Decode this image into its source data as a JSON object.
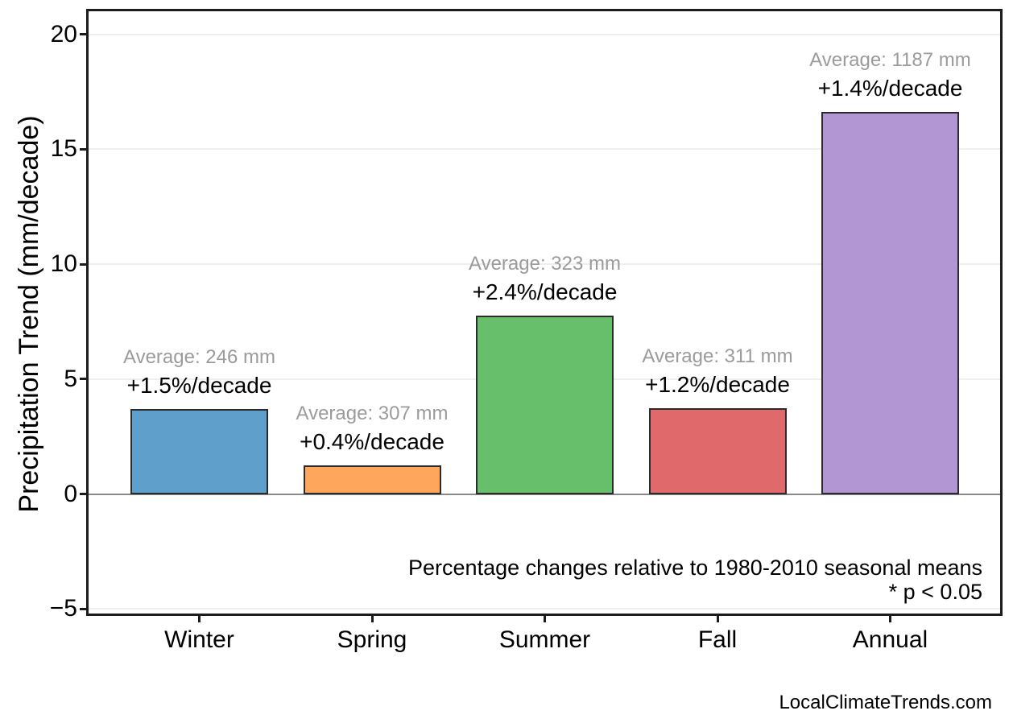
{
  "watermark": "LocalClimateTrends.com",
  "chart_data": {
    "type": "bar",
    "title": "",
    "xlabel": "",
    "ylabel": "Precipitation Trend (mm/decade)",
    "categories": [
      "Winter",
      "Spring",
      "Summer",
      "Fall",
      "Annual"
    ],
    "values": [
      3.69,
      1.23,
      7.75,
      3.73,
      16.62
    ],
    "bars": [
      {
        "category": "Winter",
        "value": 3.69,
        "average_label": "Average: 246 mm",
        "trend_label": "+1.5%/decade",
        "color": "#5E9FCC"
      },
      {
        "category": "Spring",
        "value": 1.23,
        "average_label": "Average: 307 mm",
        "trend_label": "+0.4%/decade",
        "color": "#FDA65C"
      },
      {
        "category": "Summer",
        "value": 7.75,
        "average_label": "Average: 323 mm",
        "trend_label": "+2.4%/decade",
        "color": "#68BF6B"
      },
      {
        "category": "Fall",
        "value": 3.73,
        "average_label": "Average: 311 mm",
        "trend_label": "+1.2%/decade",
        "color": "#E0696C"
      },
      {
        "category": "Annual",
        "value": 16.62,
        "average_label": "Average: 1187 mm",
        "trend_label": "+1.4%/decade",
        "color": "#B295D3"
      }
    ],
    "y_ticks": [
      {
        "value": 20,
        "label": "20"
      },
      {
        "value": 15,
        "label": "15"
      },
      {
        "value": 10,
        "label": "10"
      },
      {
        "value": 5,
        "label": "5"
      },
      {
        "value": 0,
        "label": "0"
      },
      {
        "value": -5,
        "label": "−5"
      }
    ],
    "ylim": [
      -5.2,
      21.0
    ],
    "grid": "horizontal",
    "legend": "none",
    "annotations": [
      "Percentage changes relative to 1980-2010 seasonal means",
      "* p < 0.05"
    ],
    "colors": {
      "axis": "#1c1c1c",
      "bar_edge": "#2b2b2b",
      "gridline": "#efefef",
      "zero_line": "#8a8a8a",
      "average_label_text": "#9b9b9b",
      "trend_label_text": "#000000"
    }
  }
}
